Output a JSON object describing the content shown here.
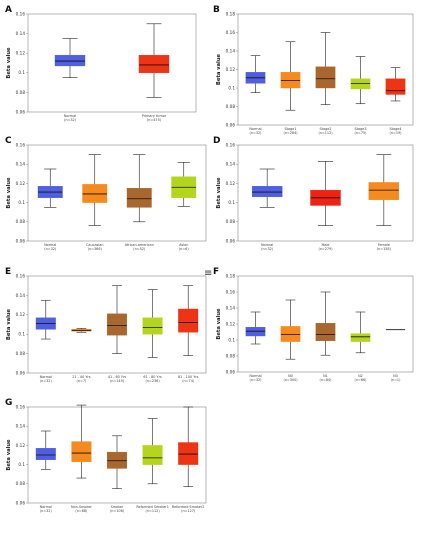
{
  "colors": {
    "normal": "#4f5fe0",
    "primary": "#ee3414",
    "stage1": "#f58a1f",
    "stage2": "#a8672e",
    "stage3": "#b4d51e",
    "stage4": "#ee3414",
    "male": "#ee2316",
    "female": "#f58a1f",
    "caucasian": "#f58a1f",
    "african": "#a8672e",
    "asian": "#b4d51e",
    "age1": "#f58a1f",
    "age2": "#a8672e",
    "age3": "#b4d51e",
    "age4": "#ee3414",
    "n0": "#f58a1f",
    "n1": "#a8672e",
    "n2": "#b4d51e",
    "n3": "#333333",
    "nonsmoker": "#f58a1f",
    "smoker": "#a8672e",
    "reformed1": "#b4d51e",
    "reformed2": "#ee3414"
  },
  "separator_glyph": "≡",
  "chart_data": [
    {
      "panel": "A",
      "type": "box",
      "ylabel": "Beta value",
      "yticks": [
        "0.06",
        "0.08",
        "0.1",
        "0.12",
        "0.14",
        "0.16"
      ],
      "ylim": [
        0.06,
        0.16
      ],
      "categories": [
        "Normal",
        "Primary tumor"
      ],
      "counts": [
        "(n=32)",
        "(n=475)"
      ],
      "boxes": [
        {
          "min": 0.095,
          "q1": 0.107,
          "median": 0.112,
          "q3": 0.118,
          "max": 0.135,
          "color_key": "normal"
        },
        {
          "min": 0.075,
          "q1": 0.1,
          "median": 0.108,
          "q3": 0.118,
          "max": 0.15,
          "color_key": "primary"
        }
      ]
    },
    {
      "panel": "B",
      "type": "box",
      "ylabel": "Beta value",
      "yticks": [
        "0.06",
        "0.08",
        "0.1",
        "0.12",
        "0.14",
        "0.16",
        "0.18"
      ],
      "ylim": [
        0.06,
        0.18
      ],
      "categories": [
        "Normal",
        "Stage1",
        "Stage2",
        "Stage3",
        "Stage4"
      ],
      "counts": [
        "(n=32)",
        "(n=264)",
        "(n=112)",
        "(n=75)",
        "(n=19)"
      ],
      "boxes": [
        {
          "min": 0.095,
          "q1": 0.105,
          "median": 0.111,
          "q3": 0.117,
          "max": 0.135,
          "color_key": "normal"
        },
        {
          "min": 0.076,
          "q1": 0.1,
          "median": 0.108,
          "q3": 0.117,
          "max": 0.15,
          "color_key": "stage1"
        },
        {
          "min": 0.082,
          "q1": 0.1,
          "median": 0.11,
          "q3": 0.123,
          "max": 0.16,
          "color_key": "stage2"
        },
        {
          "min": 0.083,
          "q1": 0.099,
          "median": 0.105,
          "q3": 0.11,
          "max": 0.134,
          "color_key": "stage3"
        },
        {
          "min": 0.086,
          "q1": 0.093,
          "median": 0.097,
          "q3": 0.11,
          "max": 0.122,
          "color_key": "stage4"
        }
      ]
    },
    {
      "panel": "C",
      "type": "box",
      "ylabel": "Beta value",
      "yticks": [
        "0.06",
        "0.08",
        "0.1",
        "0.12",
        "0.14",
        "0.16"
      ],
      "ylim": [
        0.06,
        0.16
      ],
      "categories": [
        "Normal",
        "Caucasian",
        "African-american",
        "Asian"
      ],
      "counts": [
        "(n=32)",
        "(n=366)",
        "(n=52)",
        "(n=6)"
      ],
      "boxes": [
        {
          "min": 0.095,
          "q1": 0.105,
          "median": 0.111,
          "q3": 0.117,
          "max": 0.135,
          "color_key": "normal"
        },
        {
          "min": 0.076,
          "q1": 0.1,
          "median": 0.109,
          "q3": 0.119,
          "max": 0.15,
          "color_key": "caucasian"
        },
        {
          "min": 0.08,
          "q1": 0.095,
          "median": 0.104,
          "q3": 0.115,
          "max": 0.15,
          "color_key": "african"
        },
        {
          "min": 0.096,
          "q1": 0.105,
          "median": 0.116,
          "q3": 0.127,
          "max": 0.142,
          "color_key": "asian"
        }
      ]
    },
    {
      "panel": "D",
      "type": "box",
      "ylabel": "Beta value",
      "yticks": [
        "0.06",
        "0.08",
        "0.1",
        "0.12",
        "0.14",
        "0.16"
      ],
      "ylim": [
        0.06,
        0.16
      ],
      "categories": [
        "Normal",
        "Male",
        "Female"
      ],
      "counts": [
        "(n=32)",
        "(n=279)",
        "(n=158)"
      ],
      "boxes": [
        {
          "min": 0.095,
          "q1": 0.106,
          "median": 0.111,
          "q3": 0.117,
          "max": 0.135,
          "color_key": "normal"
        },
        {
          "min": 0.076,
          "q1": 0.097,
          "median": 0.105,
          "q3": 0.113,
          "max": 0.143,
          "color_key": "male"
        },
        {
          "min": 0.076,
          "q1": 0.103,
          "median": 0.113,
          "q3": 0.121,
          "max": 0.15,
          "color_key": "female"
        }
      ]
    },
    {
      "panel": "E",
      "type": "box",
      "ylabel": "Beta value",
      "yticks": [
        "0.06",
        "0.08",
        "0.1",
        "0.12",
        "0.14",
        "0.16"
      ],
      "ylim": [
        0.06,
        0.16
      ],
      "categories": [
        "Normal",
        "21 - 40 Yrs",
        "41 - 60 Yrs",
        "61 - 80 Yrs",
        "81 - 100 Yrs"
      ],
      "counts": [
        "(n=32)",
        "(n=7)",
        "(n=149)",
        "(n=236)",
        "(n=74)"
      ],
      "boxes": [
        {
          "min": 0.095,
          "q1": 0.105,
          "median": 0.111,
          "q3": 0.117,
          "max": 0.135,
          "color_key": "normal"
        },
        {
          "min": 0.102,
          "q1": 0.103,
          "median": 0.104,
          "q3": 0.105,
          "max": 0.106,
          "color_key": "age1"
        },
        {
          "min": 0.08,
          "q1": 0.099,
          "median": 0.109,
          "q3": 0.121,
          "max": 0.15,
          "color_key": "age2"
        },
        {
          "min": 0.076,
          "q1": 0.1,
          "median": 0.107,
          "q3": 0.117,
          "max": 0.146,
          "color_key": "age3"
        },
        {
          "min": 0.078,
          "q1": 0.102,
          "median": 0.112,
          "q3": 0.126,
          "max": 0.15,
          "color_key": "age4"
        }
      ]
    },
    {
      "panel": "F",
      "type": "box",
      "ylabel": "Beta value",
      "yticks": [
        "0.06",
        "0.08",
        "0.1",
        "0.12",
        "0.14",
        "0.16",
        "0.18"
      ],
      "ylim": [
        0.06,
        0.18
      ],
      "categories": [
        "Normal",
        "N0",
        "N1",
        "N2",
        "N3"
      ],
      "counts": [
        "(n=32)",
        "(n=300)",
        "(n=84)",
        "(n=66)",
        "(n=1)"
      ],
      "boxes": [
        {
          "min": 0.095,
          "q1": 0.105,
          "median": 0.111,
          "q3": 0.116,
          "max": 0.135,
          "color_key": "normal"
        },
        {
          "min": 0.076,
          "q1": 0.098,
          "median": 0.107,
          "q3": 0.117,
          "max": 0.15,
          "color_key": "n0"
        },
        {
          "min": 0.081,
          "q1": 0.099,
          "median": 0.107,
          "q3": 0.121,
          "max": 0.16,
          "color_key": "n1"
        },
        {
          "min": 0.084,
          "q1": 0.098,
          "median": 0.104,
          "q3": 0.108,
          "max": 0.135,
          "color_key": "n2"
        },
        {
          "min": 0.113,
          "q1": 0.113,
          "median": 0.113,
          "q3": 0.113,
          "max": 0.113,
          "color_key": "n3"
        }
      ]
    },
    {
      "panel": "G",
      "type": "box",
      "ylabel": "Beta value",
      "yticks": [
        "0.06",
        "0.08",
        "0.1",
        "0.12",
        "0.14",
        "0.16"
      ],
      "ylim": [
        0.06,
        0.16
      ],
      "categories": [
        "Normal",
        "Non-Smoker",
        "Smoker",
        "Reformed Smoker1",
        "Reformed Smoker2"
      ],
      "counts": [
        "(n=32)",
        "(n=68)",
        "(n=106)",
        "(n=112)",
        "(n=127)"
      ],
      "boxes": [
        {
          "min": 0.095,
          "q1": 0.105,
          "median": 0.11,
          "q3": 0.117,
          "max": 0.135,
          "color_key": "normal"
        },
        {
          "min": 0.086,
          "q1": 0.103,
          "median": 0.112,
          "q3": 0.124,
          "max": 0.162,
          "color_key": "nonsmoker"
        },
        {
          "min": 0.075,
          "q1": 0.096,
          "median": 0.104,
          "q3": 0.113,
          "max": 0.13,
          "color_key": "smoker"
        },
        {
          "min": 0.08,
          "q1": 0.1,
          "median": 0.107,
          "q3": 0.12,
          "max": 0.148,
          "color_key": "reformed1"
        },
        {
          "min": 0.077,
          "q1": 0.1,
          "median": 0.111,
          "q3": 0.123,
          "max": 0.16,
          "color_key": "reformed2"
        }
      ]
    }
  ]
}
